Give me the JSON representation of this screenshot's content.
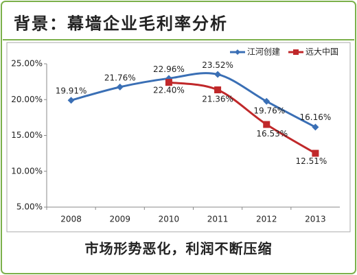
{
  "chart_data": {
    "type": "line",
    "title": "背景：幕墙企业毛利率分析",
    "subtitle": "市场形势恶化，利润不断压缩",
    "categories": [
      "2008",
      "2009",
      "2010",
      "2011",
      "2012",
      "2013"
    ],
    "series": [
      {
        "name": "江河创建",
        "color": "#3a6fb5",
        "marker": "diamond",
        "values": [
          19.91,
          21.76,
          22.96,
          23.52,
          19.76,
          16.16
        ],
        "value_labels": [
          "19.91%",
          "21.76%",
          "22.96%",
          "23.52%",
          "19.76%",
          "16.16%"
        ]
      },
      {
        "name": "远大中国",
        "color": "#c0282a",
        "marker": "square",
        "values": [
          null,
          null,
          22.4,
          21.36,
          16.53,
          12.51
        ],
        "value_labels": [
          null,
          null,
          "22.40%",
          "21.36%",
          "16.53%",
          "12.51%"
        ]
      }
    ],
    "ylim": [
      5,
      25
    ],
    "yticks": [
      {
        "value": 5,
        "label": "5.00%"
      },
      {
        "value": 10,
        "label": "10.00%"
      },
      {
        "value": 15,
        "label": "15.00%"
      },
      {
        "value": 20,
        "label": "20.00%"
      },
      {
        "value": 25,
        "label": "25.00%"
      }
    ],
    "grid": false,
    "smooth": true,
    "legend": "top-right"
  }
}
